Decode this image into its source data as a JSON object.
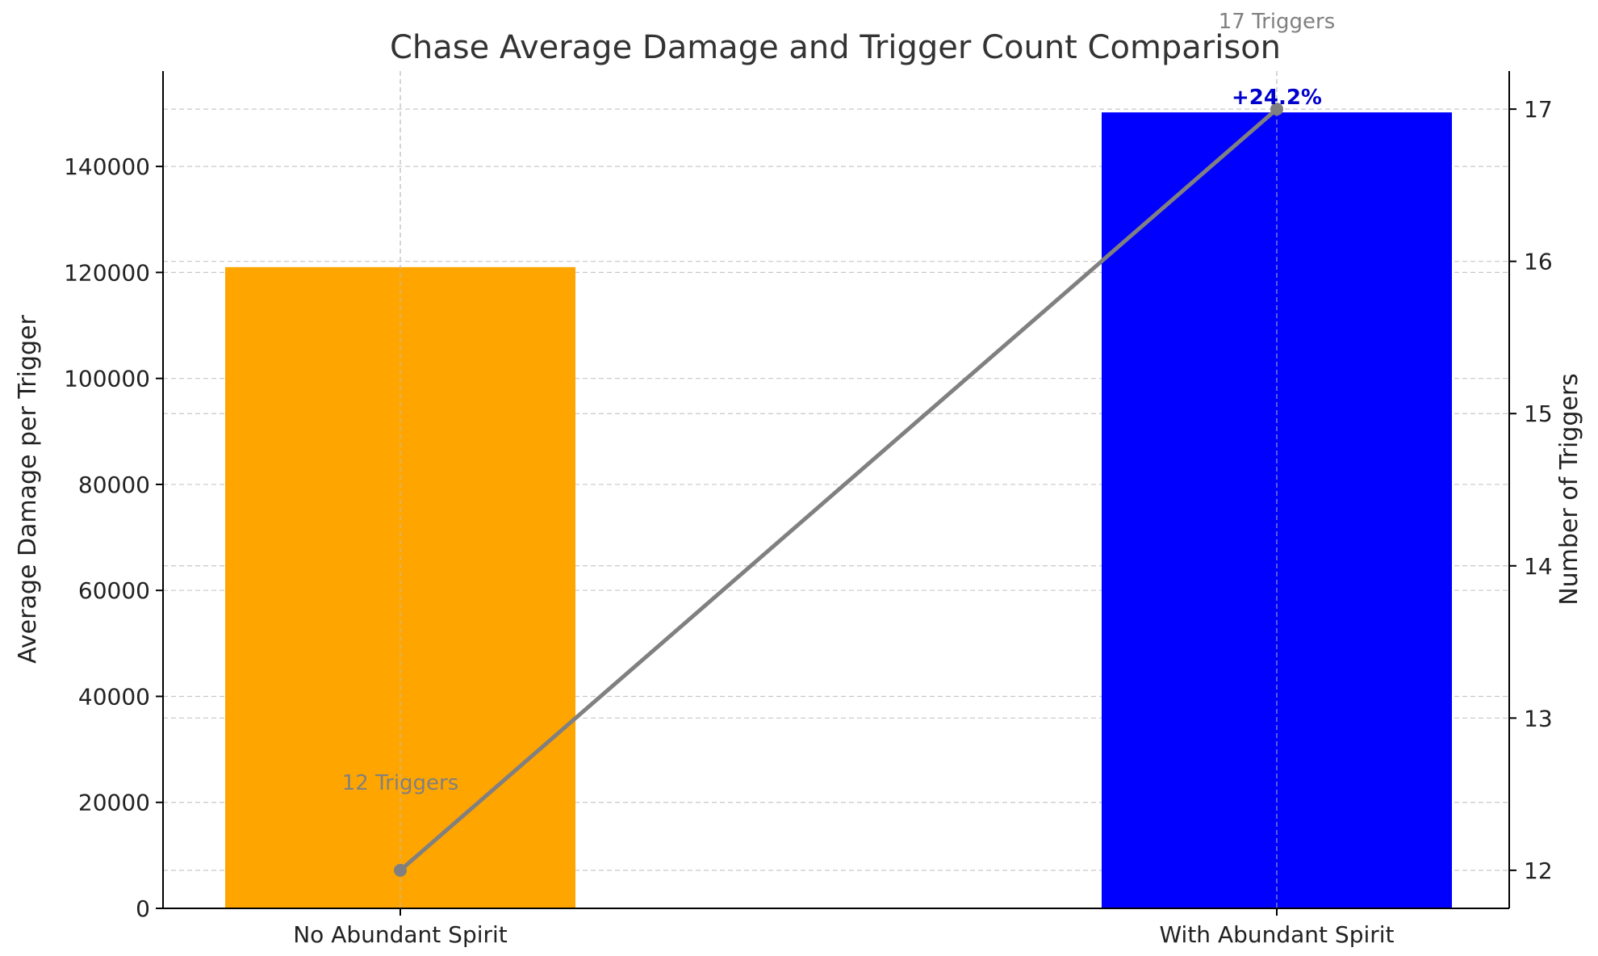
{
  "chart_data": {
    "type": "bar",
    "title": "Chase Average Damage and Trigger Count Comparison",
    "categories": [
      "No Abundant Spirit",
      "With Abundant Spirit"
    ],
    "series": [
      {
        "values": [
          121000,
          150200
        ],
        "axis": "left",
        "colors": [
          "#FFA500",
          "#0000FF"
        ]
      },
      {
        "type": "line",
        "values": [
          12,
          17
        ],
        "axis": "right",
        "color": "#808080",
        "point_labels": [
          "12 Triggers",
          "17 Triggers"
        ]
      }
    ],
    "ylabel": "Average Damage per Trigger",
    "y2label": "Number of Triggers",
    "ylim": [
      0,
      158000
    ],
    "y2lim": [
      11.75,
      17.25
    ],
    "yticks": [
      0,
      20000,
      40000,
      60000,
      80000,
      100000,
      120000,
      140000
    ],
    "y2ticks": [
      12,
      13,
      14,
      15,
      16,
      17
    ],
    "grid": true,
    "annotations": [
      {
        "text": "+24.2%",
        "category": "With Abundant Spirit",
        "color": "#0000CD"
      }
    ]
  }
}
